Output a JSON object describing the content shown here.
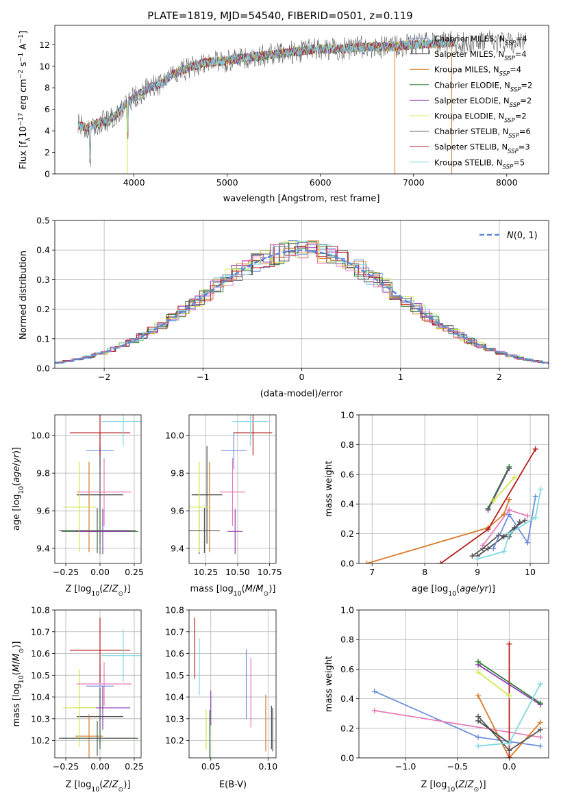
{
  "chart_data": [
    {
      "id": "spectrum",
      "type": "line",
      "title": "PLATE=1819, MJD=54540, FIBERID=0501, z=0.119",
      "xlabel": "wavelength [Angstrom, rest frame]",
      "ylabel": "Flux [f_λ 10^-17 erg cm^-2 s^-1 A^-1]",
      "xlim": [
        3150,
        8450
      ],
      "ylim": [
        0,
        13.8
      ],
      "xticks": [
        4000,
        5000,
        6000,
        7000,
        8000
      ],
      "yticks": [
        0,
        2,
        4,
        6,
        8,
        10,
        12
      ],
      "grid": false,
      "legend_position": "top-right",
      "continuum": {
        "x": [
          3400,
          3500,
          3600,
          3700,
          3800,
          3900,
          4000,
          4100,
          4200,
          4300,
          4400,
          4600,
          4800,
          5000,
          5200,
          5400,
          5600,
          5800,
          6000,
          6200,
          6500,
          6800,
          7000,
          7200,
          7400,
          7600,
          7800,
          8000,
          8200
        ],
        "y": [
          4.5,
          4.3,
          4.7,
          4.9,
          5.4,
          6.4,
          7.1,
          7.7,
          8.1,
          8.4,
          9.2,
          9.9,
          10.4,
          10.5,
          10.8,
          11.0,
          11.2,
          11.4,
          11.6,
          11.6,
          11.8,
          11.8,
          12.0,
          12.1,
          12.2,
          12.2,
          12.3,
          12.3,
          12.2
        ]
      },
      "series": [
        {
          "name": "Chabrier MILES, N_SSP=4",
          "color": "#6d8edc"
        },
        {
          "name": "Salpeter MILES, N_SSP=4",
          "color": "#4a4a4a"
        },
        {
          "name": "Kroupa MILES, N_SSP=4",
          "color": "#d87a27"
        },
        {
          "name": "Chabrier ELODIE, N_SSP=2",
          "color": "#2e7d32"
        },
        {
          "name": "Salpeter ELODIE, N_SSP=2",
          "color": "#8e3bb3"
        },
        {
          "name": "Kroupa ELODIE, N_SSP=2",
          "color": "#d4e84a"
        },
        {
          "name": "Chabrier STELIB, N_SSP=6",
          "color": "#555555"
        },
        {
          "name": "Salpeter STELIB, N_SSP=3",
          "color": "#b71c1c"
        },
        {
          "name": "Kroupa STELIB, N_SSP=5",
          "color": "#7fd8e3"
        }
      ]
    },
    {
      "id": "residuals",
      "type": "line",
      "xlabel": "(data-model)/error",
      "ylabel": "Normed distribution",
      "xlim": [
        -2.5,
        2.5
      ],
      "ylim": [
        0,
        0.5
      ],
      "xticks": [
        -2,
        -1,
        0,
        1,
        2
      ],
      "yticks": [
        0.0,
        0.1,
        0.2,
        0.3,
        0.4,
        0.5
      ],
      "grid": true,
      "legend_position": "top-right",
      "legend_label": "N(0,1)",
      "gaussian": {
        "mean": 0,
        "sigma": 1
      }
    },
    {
      "id": "age-vs-Z",
      "type": "scatter",
      "xlabel": "Z [log10(Z/Z☉)]",
      "ylabel": "age  [log10(age/yr)]",
      "xlim": [
        -0.33,
        0.3
      ],
      "ylim": [
        9.32,
        10.11
      ],
      "xticks": [
        -0.25,
        0.0,
        0.25
      ],
      "yticks": [
        9.4,
        9.6,
        9.8,
        10.0
      ],
      "grid": true,
      "points": [
        {
          "x": 0.0,
          "xerr": 0.1,
          "y": 9.92,
          "yerr": 0.1,
          "color": "#6d8edc"
        },
        {
          "x": 0.0,
          "xerr": 0.17,
          "y": 9.685,
          "yerr": 0.26,
          "color": "#4a4a4a"
        },
        {
          "x": -0.08,
          "xerr": 0.0,
          "y": 9.62,
          "yerr": 0.24,
          "color": "#d87a27"
        },
        {
          "x": 0.0,
          "xerr": 0.28,
          "y": 9.49,
          "yerr": 0.12,
          "color": "#2e7d32"
        },
        {
          "x": 0.02,
          "xerr": 0.2,
          "y": 9.49,
          "yerr": 0.12,
          "color": "#8e3bb3"
        },
        {
          "x": -0.15,
          "xerr": 0.12,
          "y": 9.62,
          "yerr": 0.24,
          "color": "#d4e84a"
        },
        {
          "x": -0.02,
          "xerr": 0.28,
          "y": 9.495,
          "yerr": 0.12,
          "color": "#555555"
        },
        {
          "x": 0.0,
          "xerr": 0.22,
          "y": 10.015,
          "yerr": 0.12,
          "color": "#b71c1c"
        },
        {
          "x": 0.17,
          "xerr": 0.16,
          "y": 10.075,
          "yerr": 0.13,
          "color": "#7fd8e3"
        },
        {
          "x": 0.03,
          "xerr": 0.2,
          "y": 9.7,
          "yerr": 0.18,
          "color": "#e87ab8"
        }
      ]
    },
    {
      "id": "age-vs-mass",
      "type": "scatter",
      "xlabel": "mass [log10(M/M☉)]",
      "xlim": [
        10.12,
        10.8
      ],
      "ylim": [
        9.32,
        10.11
      ],
      "xticks": [
        10.25,
        10.5,
        10.75
      ],
      "yticks": [
        9.4,
        9.6,
        9.8,
        10.0
      ],
      "grid": true,
      "points": [
        {
          "x": 10.47,
          "xerr": 0.1,
          "y": 9.92,
          "yerr": 0.1,
          "color": "#6d8edc"
        },
        {
          "x": 10.26,
          "xerr": 0.12,
          "y": 9.685,
          "yerr": 0.26,
          "color": "#4a4a4a"
        },
        {
          "x": 10.28,
          "xerr": 0.0,
          "y": 9.62,
          "yerr": 0.24,
          "color": "#d87a27"
        },
        {
          "x": 10.2,
          "xerr": 0.0,
          "y": 9.49,
          "yerr": 0.12,
          "color": "#2e7d32"
        },
        {
          "x": 10.48,
          "xerr": 0.06,
          "y": 9.49,
          "yerr": 0.12,
          "color": "#8e3bb3"
        },
        {
          "x": 10.2,
          "xerr": 0.09,
          "y": 9.62,
          "yerr": 0.24,
          "color": "#d4e84a"
        },
        {
          "x": 10.24,
          "xerr": 0.12,
          "y": 9.495,
          "yerr": 0.12,
          "color": "#555555"
        },
        {
          "x": 10.62,
          "xerr": 0.15,
          "y": 10.015,
          "yerr": 0.12,
          "color": "#b71c1c"
        },
        {
          "x": 10.6,
          "xerr": 0.14,
          "y": 10.075,
          "yerr": 0.13,
          "color": "#7fd8e3"
        },
        {
          "x": 10.46,
          "xerr": 0.1,
          "y": 9.7,
          "yerr": 0.18,
          "color": "#e87ab8"
        }
      ]
    },
    {
      "id": "weight-vs-age",
      "type": "line",
      "xlabel": "age  [log10(age/yr)]",
      "ylabel": "mass weight",
      "xlim": [
        6.75,
        10.35
      ],
      "ylim": [
        0,
        1.0
      ],
      "xticks": [
        7,
        8,
        9,
        10
      ],
      "yticks": [
        0.0,
        0.2,
        0.4,
        0.6,
        0.8,
        1.0
      ],
      "grid": true,
      "series": [
        {
          "color": "#d87a27",
          "x": [
            6.9,
            9.2,
            9.5,
            9.6
          ],
          "y": [
            0.0,
            0.24,
            0.33,
            0.43
          ]
        },
        {
          "color": "#b71c1c",
          "x": [
            8.3,
            9.2,
            10.1
          ],
          "y": [
            0.0,
            0.23,
            0.77
          ]
        },
        {
          "color": "#8e3bb3",
          "x": [
            9.2,
            9.6
          ],
          "y": [
            0.36,
            0.64
          ]
        },
        {
          "color": "#2e7d32",
          "x": [
            9.2,
            9.6
          ],
          "y": [
            0.37,
            0.65
          ]
        },
        {
          "color": "#d4e84a",
          "x": [
            9.3,
            9.7
          ],
          "y": [
            0.42,
            0.58
          ]
        },
        {
          "color": "#555555",
          "x": [
            8.9,
            9.1,
            9.4,
            9.6,
            9.8
          ],
          "y": [
            0.05,
            0.1,
            0.19,
            0.18,
            0.28
          ]
        },
        {
          "color": "#4a4a4a",
          "x": [
            9.0,
            9.2,
            9.5,
            9.7,
            9.9
          ],
          "y": [
            0.05,
            0.1,
            0.18,
            0.24,
            0.29
          ]
        },
        {
          "color": "#6d8edc",
          "x": [
            9.3,
            9.6,
            9.95,
            10.1
          ],
          "y": [
            0.1,
            0.33,
            0.14,
            0.45
          ]
        },
        {
          "color": "#e87ab8",
          "x": [
            9.1,
            9.6,
            9.95
          ],
          "y": [
            0.12,
            0.36,
            0.32
          ]
        },
        {
          "color": "#7fd8e3",
          "x": [
            9.0,
            9.5,
            9.6,
            10.1,
            10.2
          ],
          "y": [
            0.03,
            0.08,
            0.2,
            0.31,
            0.5
          ]
        }
      ]
    },
    {
      "id": "mass-vs-Z",
      "type": "scatter",
      "xlabel": "Z [log10(Z/Z☉)]",
      "ylabel": "mass [log10(M/M☉)]",
      "xlim": [
        -0.33,
        0.3
      ],
      "ylim": [
        10.12,
        10.8
      ],
      "xticks": [
        -0.25,
        0.0,
        0.25
      ],
      "yticks": [
        10.2,
        10.3,
        10.4,
        10.5,
        10.6,
        10.7,
        10.8
      ],
      "grid": true,
      "points": [
        {
          "x": 0.0,
          "xerr": 0.1,
          "y": 10.45,
          "yerr": 0.1,
          "color": "#6d8edc"
        },
        {
          "x": 0.0,
          "xerr": 0.17,
          "y": 10.31,
          "yerr": 0.13,
          "color": "#4a4a4a"
        },
        {
          "x": -0.08,
          "xerr": 0.1,
          "y": 10.22,
          "yerr": 0.1,
          "color": "#d87a27"
        },
        {
          "x": 0.0,
          "xerr": 0.28,
          "y": 10.21,
          "yerr": 0.05,
          "color": "#2e7d32"
        },
        {
          "x": 0.02,
          "xerr": 0.2,
          "y": 10.35,
          "yerr": 0.1,
          "color": "#8e3bb3"
        },
        {
          "x": -0.15,
          "xerr": 0.12,
          "y": 10.35,
          "yerr": 0.18,
          "color": "#d4e84a"
        },
        {
          "x": -0.02,
          "xerr": 0.28,
          "y": 10.21,
          "yerr": 0.08,
          "color": "#555555"
        },
        {
          "x": 0.0,
          "xerr": 0.22,
          "y": 10.615,
          "yerr": 0.15,
          "color": "#b71c1c"
        },
        {
          "x": 0.17,
          "xerr": 0.16,
          "y": 10.59,
          "yerr": 0.12,
          "color": "#7fd8e3"
        },
        {
          "x": 0.03,
          "xerr": 0.2,
          "y": 10.46,
          "yerr": 0.1,
          "color": "#e87ab8"
        }
      ]
    },
    {
      "id": "mass-vs-ebv",
      "type": "scatter",
      "xlabel": "E(B-V)",
      "xlim": [
        0.031,
        0.107
      ],
      "ylim": [
        10.12,
        10.8
      ],
      "xticks": [
        0.05,
        0.1
      ],
      "yticks": [
        10.2,
        10.3,
        10.4,
        10.5,
        10.6,
        10.7,
        10.8
      ],
      "grid": true,
      "points": [
        {
          "x": 0.081,
          "xerr": 0.0,
          "y": 10.46,
          "yerr": 0.16,
          "color": "#6d8edc"
        },
        {
          "x": 0.103,
          "xerr": 0.0,
          "y": 10.26,
          "yerr": 0.1,
          "color": "#4a4a4a"
        },
        {
          "x": 0.098,
          "xerr": 0.0,
          "y": 10.28,
          "yerr": 0.13,
          "color": "#d87a27"
        },
        {
          "x": 0.049,
          "xerr": 0.0,
          "y": 10.22,
          "yerr": 0.12,
          "color": "#2e7d32"
        },
        {
          "x": 0.05,
          "xerr": 0.0,
          "y": 10.35,
          "yerr": 0.08,
          "color": "#8e3bb3"
        },
        {
          "x": 0.046,
          "xerr": 0.0,
          "y": 10.25,
          "yerr": 0.09,
          "color": "#d4e84a"
        },
        {
          "x": 0.104,
          "xerr": 0.0,
          "y": 10.25,
          "yerr": 0.1,
          "color": "#555555"
        },
        {
          "x": 0.036,
          "xerr": 0.0,
          "y": 10.625,
          "yerr": 0.14,
          "color": "#b71c1c"
        },
        {
          "x": 0.04,
          "xerr": 0.0,
          "y": 10.54,
          "yerr": 0.13,
          "color": "#7fd8e3"
        },
        {
          "x": 0.085,
          "xerr": 0.0,
          "y": 10.42,
          "yerr": 0.16,
          "color": "#e87ab8"
        }
      ]
    },
    {
      "id": "weight-vs-Z",
      "type": "line",
      "xlabel": "Z [log10(Z/Z☉)]",
      "ylabel": "mass weight",
      "xlim": [
        -1.45,
        0.38
      ],
      "ylim": [
        0,
        1.0
      ],
      "xticks": [
        -1.0,
        -0.5,
        0.0
      ],
      "yticks": [
        0.0,
        0.2,
        0.4,
        0.6,
        0.8,
        1.0
      ],
      "grid": true,
      "series": [
        {
          "color": "#6d8edc",
          "x": [
            -1.3,
            -0.3,
            0.3
          ],
          "y": [
            0.45,
            0.14,
            0.08
          ]
        },
        {
          "color": "#e87ab8",
          "x": [
            -1.3,
            0.3
          ],
          "y": [
            0.32,
            0.14
          ]
        },
        {
          "color": "#d87a27",
          "x": [
            -0.3,
            0.0,
            0.3
          ],
          "y": [
            0.42,
            0.0,
            0.24
          ]
        },
        {
          "color": "#b71c1c",
          "x": [
            0.0,
            0.0
          ],
          "y": [
            0.0,
            0.77
          ]
        },
        {
          "color": "#8e3bb3",
          "x": [
            -0.3,
            0.3
          ],
          "y": [
            0.63,
            0.36
          ]
        },
        {
          "color": "#2e7d32",
          "x": [
            -0.3,
            0.3
          ],
          "y": [
            0.65,
            0.37
          ]
        },
        {
          "color": "#d4e84a",
          "x": [
            -0.3,
            0.0
          ],
          "y": [
            0.58,
            0.42
          ]
        },
        {
          "color": "#555555",
          "x": [
            -0.3,
            0.0,
            0.3
          ],
          "y": [
            0.28,
            0.05,
            0.19
          ]
        },
        {
          "color": "#4a4a4a",
          "x": [
            -0.3,
            0.0
          ],
          "y": [
            0.25,
            0.1
          ]
        },
        {
          "color": "#7fd8e3",
          "x": [
            -0.3,
            0.0,
            0.3
          ],
          "y": [
            0.08,
            0.1,
            0.5
          ]
        }
      ]
    }
  ]
}
